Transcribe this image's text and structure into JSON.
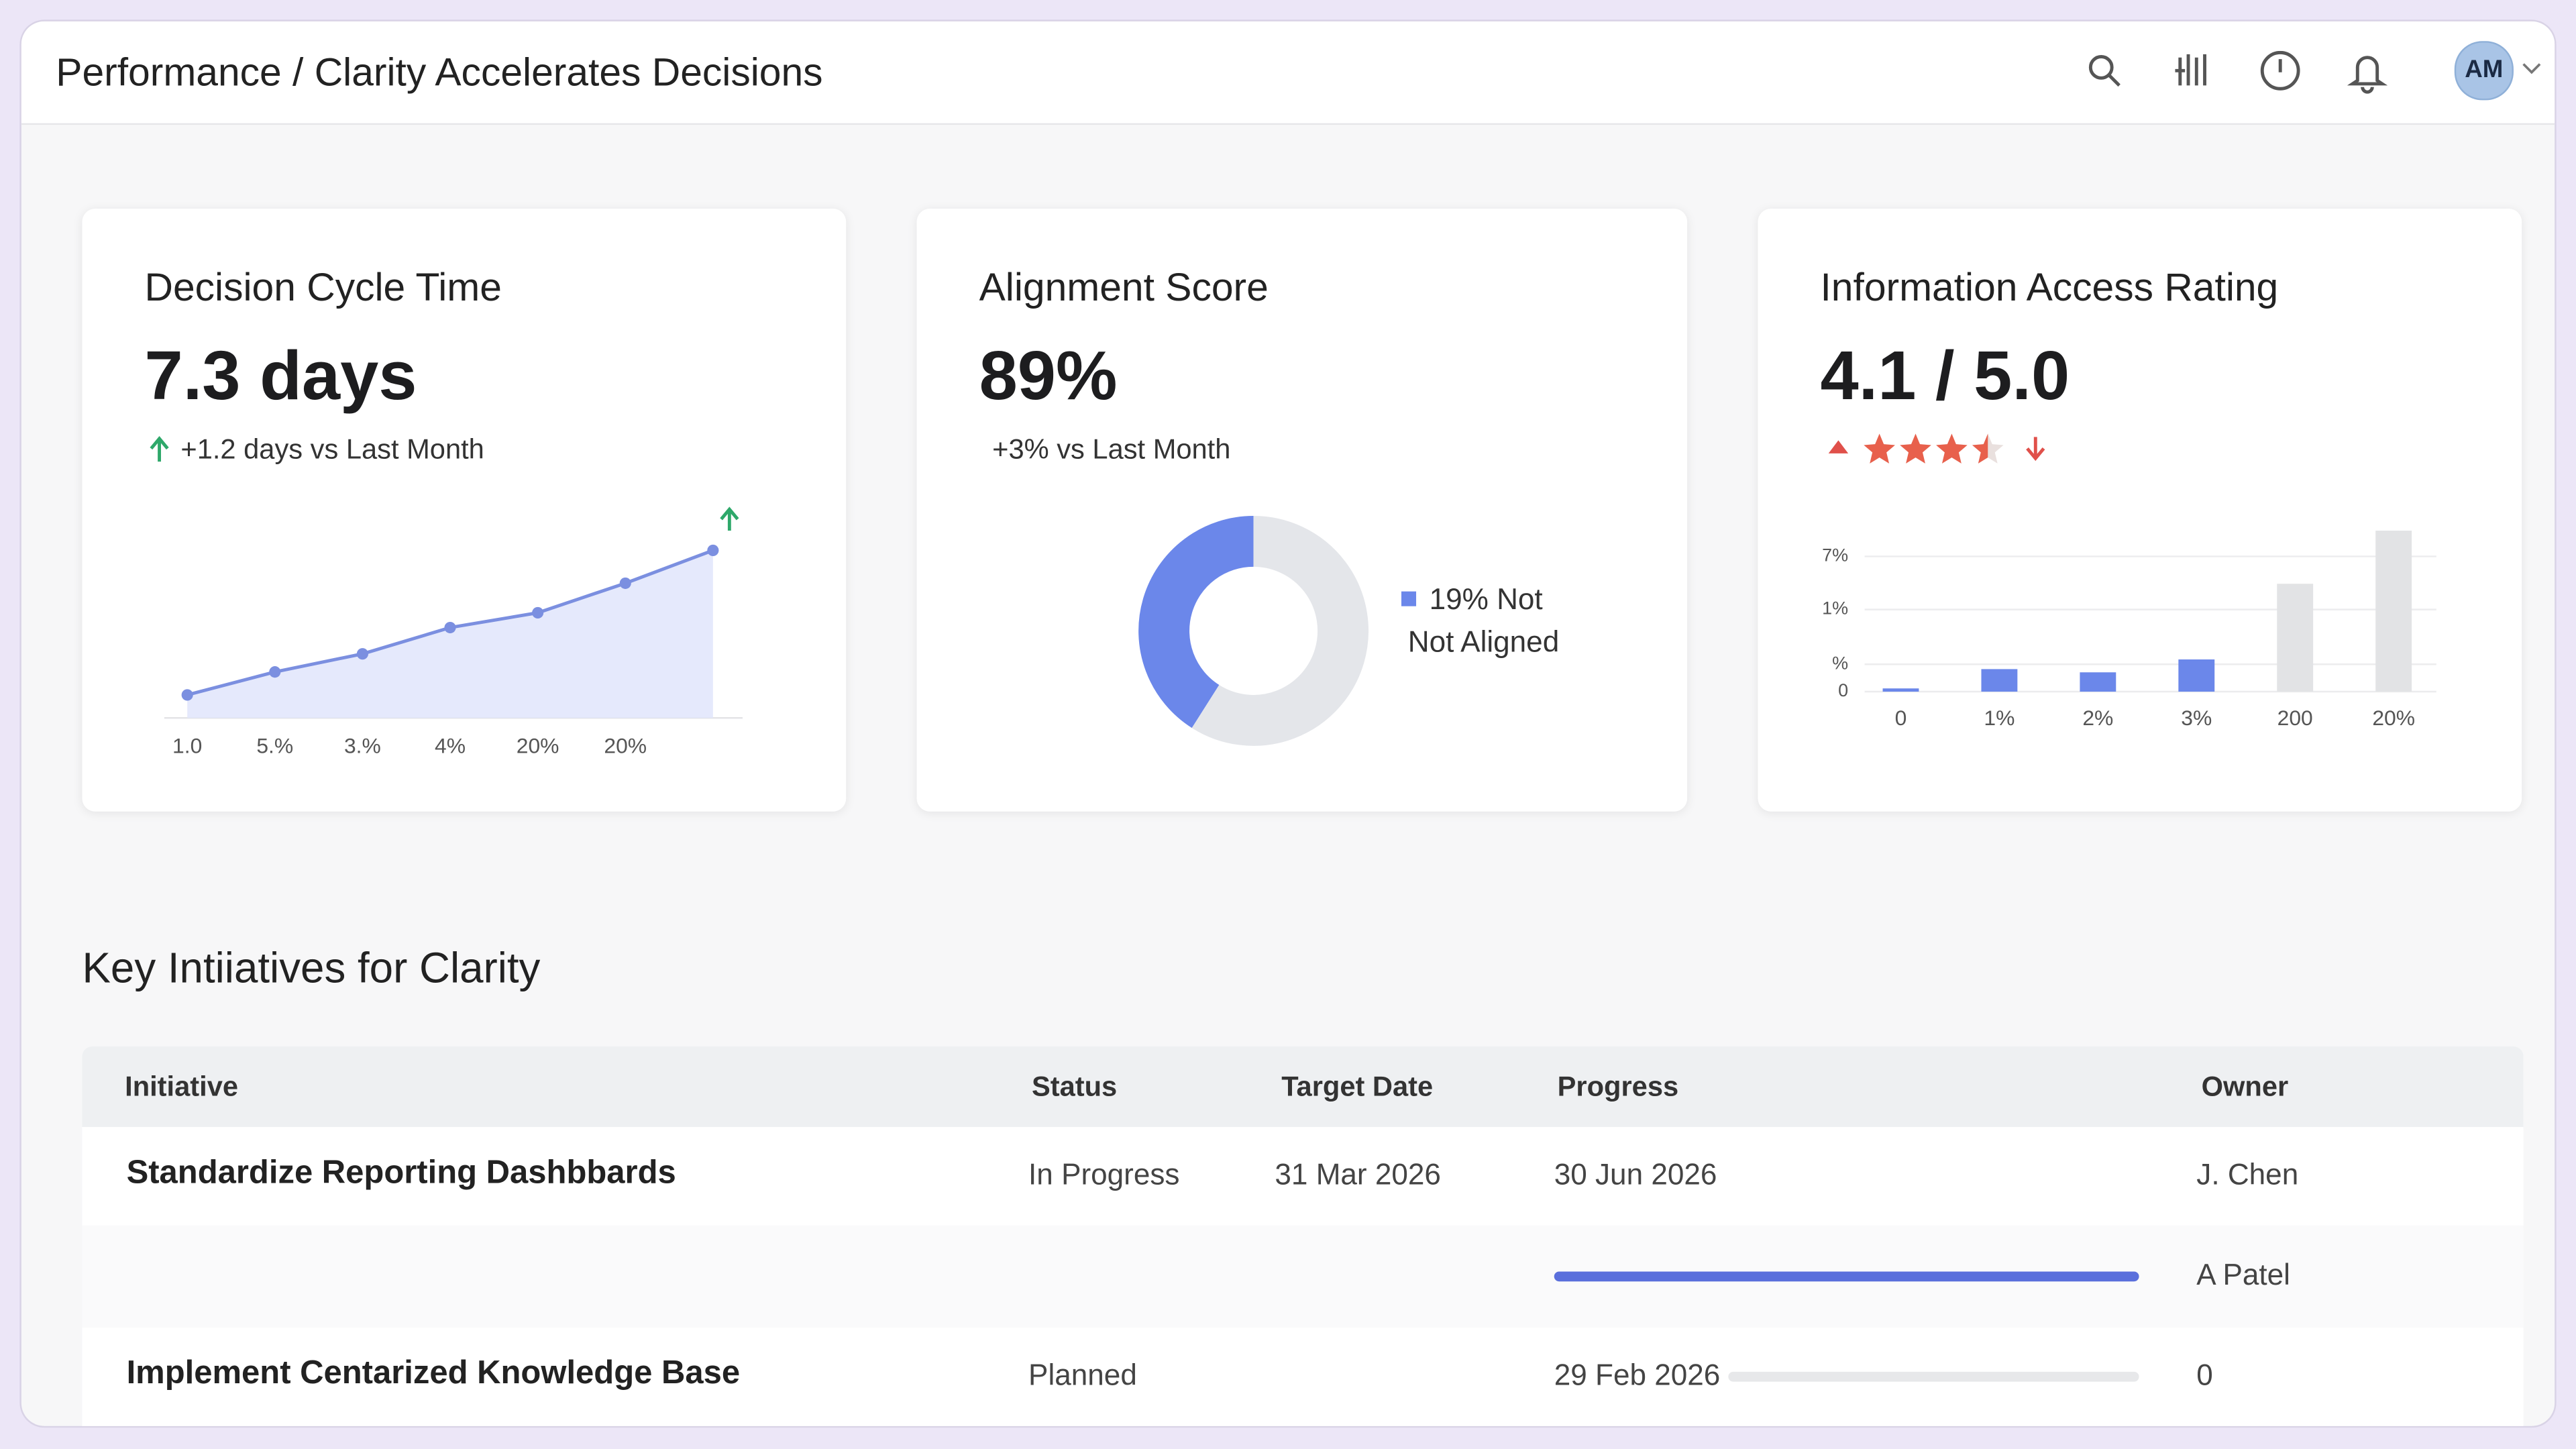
{
  "header": {
    "title": "Performance / Clarity Accelerates Decisions",
    "avatar": "AM"
  },
  "cards": [
    {
      "title": "Decision Cycle Time",
      "value": "7.3 days",
      "delta": "+1.2 days vs Last Month",
      "chart_data": {
        "type": "line",
        "categories": [
          "1.0",
          "5.%",
          "3.%",
          "4%",
          "20%",
          "20%",
          null
        ],
        "values": [
          1.4,
          2.8,
          3.9,
          5.5,
          6.4,
          8.2,
          10.2
        ],
        "ylim": [
          0,
          11
        ],
        "color": "#7b8fe0"
      }
    },
    {
      "title": "Alignment Score",
      "value": "89%",
      "delta": "+3% vs Last Month",
      "chart_data": {
        "type": "donut",
        "values": [
          41,
          59
        ],
        "colors": [
          "#6b87ea",
          "#e4e6ea"
        ],
        "legend": [
          "19% Not",
          "Not Aligned"
        ]
      }
    },
    {
      "title": "Information Access Rating",
      "value": "4.1 / 5.0",
      "stars": {
        "value": 3.5,
        "count": 4,
        "color": "#e8604c"
      },
      "chart_data": {
        "type": "bar",
        "categories": [
          "0",
          "1%",
          "2%",
          "3%",
          "200",
          "20%"
        ],
        "values": [
          2,
          14,
          12,
          20,
          67,
          100
        ],
        "colors": [
          "#6b87ea",
          "#6b87ea",
          "#6b87ea",
          "#6b87ea",
          "#e2e3e5",
          "#e2e3e5"
        ],
        "ylim": [
          0,
          100
        ],
        "yticks": [
          {
            "value": 84,
            "label": "7%"
          },
          {
            "value": 51,
            "label": "1%"
          },
          {
            "value": 17,
            "label": "%"
          },
          0
        ],
        "grid": true
      }
    }
  ],
  "table": {
    "title": "Key Intiiatives for Clarity",
    "columns": [
      "Initiative",
      "Status",
      "Target Date",
      "Progress",
      "Owner"
    ],
    "progress_max": 100,
    "rows": [
      {
        "initiative": "Standardize Reporting Dashbbards",
        "status": "In Progress",
        "target": "31 Mar 2026",
        "progress_text": "30 Jun 2026",
        "owner": "J. Chen"
      },
      {
        "progress": 100,
        "owner": "A Patel"
      },
      {
        "initiative": "Implement Centarized Knowledge Base",
        "status": "Planned",
        "progress_text": "29 Feb 2026",
        "progress": 0,
        "owner": "0"
      }
    ]
  }
}
